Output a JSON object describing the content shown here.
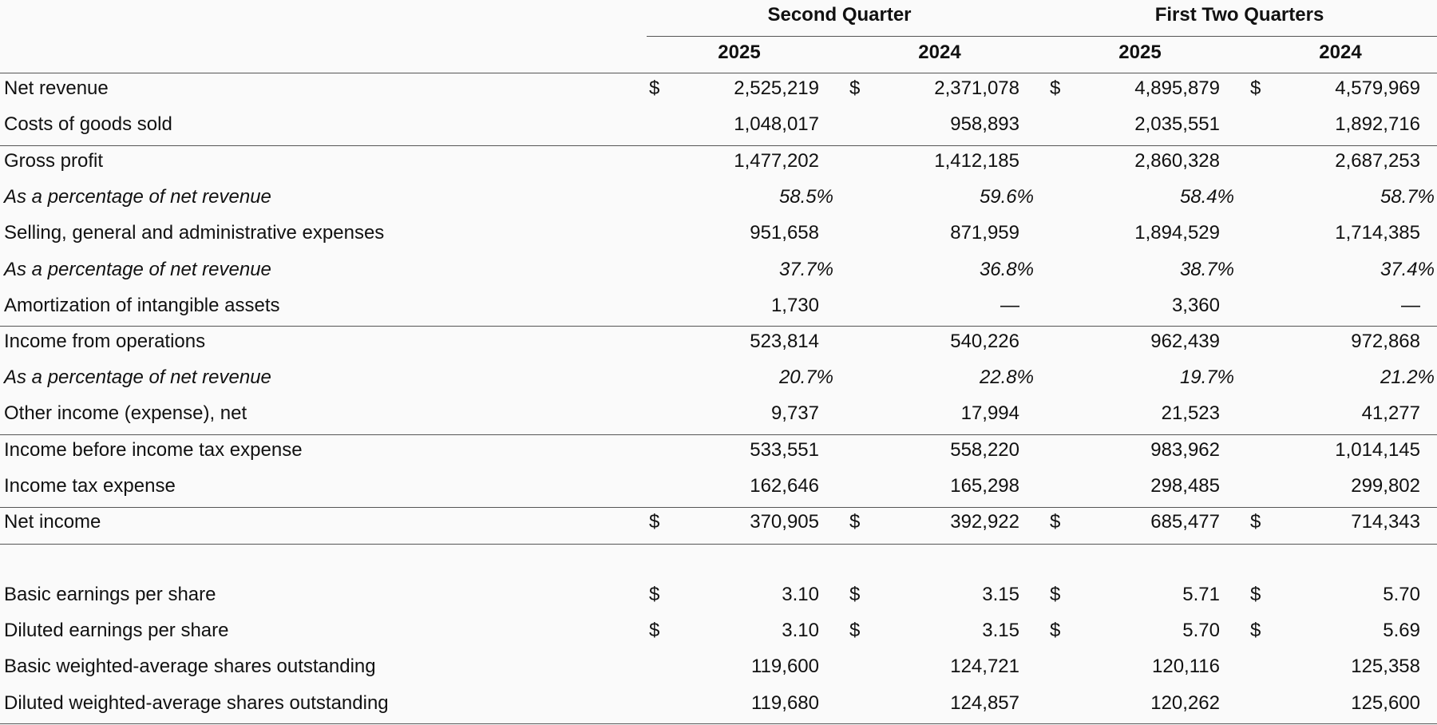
{
  "headers": {
    "groups": [
      "Second Quarter",
      "First Two Quarters"
    ],
    "years": [
      "2025",
      "2024",
      "2025",
      "2024"
    ]
  },
  "rows": [
    {
      "label": "Net revenue",
      "currency": [
        "$",
        "$",
        "$",
        "$"
      ],
      "values": [
        "2,525,219",
        "2,371,078",
        "4,895,879",
        "4,579,969"
      ]
    },
    {
      "label": "Costs of goods sold",
      "currency": [
        "",
        "",
        "",
        ""
      ],
      "values": [
        "1,048,017",
        "958,893",
        "2,035,551",
        "1,892,716"
      ]
    },
    {
      "label": "Gross profit",
      "currency": [
        "",
        "",
        "",
        ""
      ],
      "values": [
        "1,477,202",
        "1,412,185",
        "2,860,328",
        "2,687,253"
      ]
    },
    {
      "label": "As a percentage of net revenue",
      "currency": [
        "",
        "",
        "",
        ""
      ],
      "values": [
        "58.5%",
        "59.6%",
        "58.4%",
        "58.7%"
      ]
    },
    {
      "label": "Selling, general and administrative expenses",
      "currency": [
        "",
        "",
        "",
        ""
      ],
      "values": [
        "951,658",
        "871,959",
        "1,894,529",
        "1,714,385"
      ]
    },
    {
      "label": "As a percentage of net revenue",
      "currency": [
        "",
        "",
        "",
        ""
      ],
      "values": [
        "37.7%",
        "36.8%",
        "38.7%",
        "37.4%"
      ]
    },
    {
      "label": "Amortization of intangible assets",
      "currency": [
        "",
        "",
        "",
        ""
      ],
      "values": [
        "1,730",
        "—",
        "3,360",
        "—"
      ]
    },
    {
      "label": "Income from operations",
      "currency": [
        "",
        "",
        "",
        ""
      ],
      "values": [
        "523,814",
        "540,226",
        "962,439",
        "972,868"
      ]
    },
    {
      "label": "As a percentage of net revenue",
      "currency": [
        "",
        "",
        "",
        ""
      ],
      "values": [
        "20.7%",
        "22.8%",
        "19.7%",
        "21.2%"
      ]
    },
    {
      "label": "Other income (expense), net",
      "currency": [
        "",
        "",
        "",
        ""
      ],
      "values": [
        "9,737",
        "17,994",
        "21,523",
        "41,277"
      ]
    },
    {
      "label": "Income before income tax expense",
      "currency": [
        "",
        "",
        "",
        ""
      ],
      "values": [
        "533,551",
        "558,220",
        "983,962",
        "1,014,145"
      ]
    },
    {
      "label": "Income tax expense",
      "currency": [
        "",
        "",
        "",
        ""
      ],
      "values": [
        "162,646",
        "165,298",
        "298,485",
        "299,802"
      ]
    },
    {
      "label": "Net income",
      "currency": [
        "$",
        "$",
        "$",
        "$"
      ],
      "values": [
        "370,905",
        "392,922",
        "685,477",
        "714,343"
      ]
    },
    {
      "label": "Basic earnings per share",
      "currency": [
        "$",
        "$",
        "$",
        "$"
      ],
      "values": [
        "3.10",
        "3.15",
        "5.71",
        "5.70"
      ]
    },
    {
      "label": "Diluted earnings per share",
      "currency": [
        "$",
        "$",
        "$",
        "$"
      ],
      "values": [
        "3.10",
        "3.15",
        "5.70",
        "5.69"
      ]
    },
    {
      "label": "Basic weighted-average shares outstanding",
      "currency": [
        "",
        "",
        "",
        ""
      ],
      "values": [
        "119,600",
        "124,721",
        "120,116",
        "125,358"
      ]
    },
    {
      "label": "Diluted weighted-average shares outstanding",
      "currency": [
        "",
        "",
        "",
        ""
      ],
      "values": [
        "119,680",
        "124,857",
        "120,262",
        "125,600"
      ]
    }
  ]
}
